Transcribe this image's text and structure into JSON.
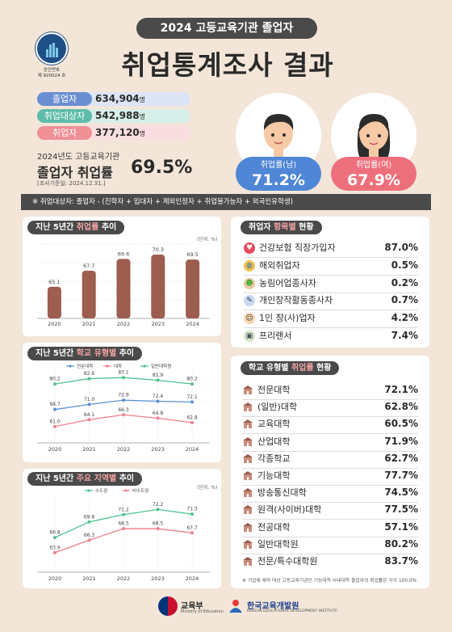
{
  "header": {
    "year_title": "2024 고등교육기관 졸업자",
    "main_title": "취업통계조사 결과",
    "approval": [
      "승인번호",
      "제 920024 호"
    ]
  },
  "stats": [
    {
      "label": "졸업자",
      "value": "634,904",
      "unit": "명",
      "color": "#6a8fd1",
      "bg": "#dbe5f5"
    },
    {
      "label": "취업대상자",
      "value": "542,988",
      "unit": "명",
      "color": "#5fbcaa",
      "bg": "#d7efe8"
    },
    {
      "label": "취업자",
      "value": "377,120",
      "unit": "명",
      "color": "#ef8f96",
      "bg": "#fadde0"
    }
  ],
  "overall": {
    "sub": "2024년도 고등교육기관",
    "label": "졸업자 취업률",
    "rate": "69.5%",
    "date": "[조사기준일: 2024.12.31.]"
  },
  "gender": {
    "male": {
      "label": "취업률(남)",
      "value": "71.2%",
      "color": "#4f86d6"
    },
    "female": {
      "label": "취업률(여)",
      "value": "67.9%",
      "color": "#ee6f7c"
    }
  },
  "note": "※ 취업대상자: 졸업자 - (진학자 + 입대자 + 제외인정자 + 취업불가능자 + 외국인유학생)",
  "trend_panel": {
    "title_pre": "지난 5년간 ",
    "title_hl": "취업률",
    "title_post": " 추이",
    "unit": "(단위: %)"
  },
  "type_panel": {
    "title_pre": "지난 5년간 ",
    "title_hl": "학교 유형별",
    "title_post": " 추이"
  },
  "region_panel": {
    "title_pre": "지난 5년간 ",
    "title_hl": "주요 지역별",
    "title_post": " 추이",
    "unit": "(단위: %)"
  },
  "chart_data": [
    {
      "type": "bar",
      "categories": [
        "2020",
        "2021",
        "2022",
        "2023",
        "2024"
      ],
      "values": [
        65.1,
        67.7,
        69.6,
        70.3,
        69.5
      ],
      "title": "지난 5년간 취업률 추이",
      "ylabel": "(단위: %)",
      "ylim": [
        60,
        72
      ]
    },
    {
      "type": "line",
      "categories": [
        "2020",
        "2021",
        "2022",
        "2023",
        "2024"
      ],
      "series": [
        {
          "name": "전문대학",
          "values": [
            68.7,
            71.0,
            72.9,
            72.4,
            72.1
          ],
          "color": "#5b8fd6"
        },
        {
          "name": "대학",
          "values": [
            61.0,
            64.1,
            66.3,
            64.8,
            62.8
          ],
          "color": "#ee7f8c"
        },
        {
          "name": "일반대학원",
          "values": [
            80.2,
            82.6,
            83.1,
            81.9,
            80.2
          ],
          "color": "#4fc28e"
        }
      ],
      "title": "지난 5년간 학교 유형별 추이"
    },
    {
      "type": "line",
      "categories": [
        "2020",
        "2021",
        "2022",
        "2023",
        "2024"
      ],
      "series": [
        {
          "name": "수도권",
          "values": [
            66.8,
            69.8,
            71.2,
            72.2,
            71.3
          ],
          "color": "#4fc28e"
        },
        {
          "name": "비수도권",
          "values": [
            63.9,
            66.3,
            68.5,
            68.5,
            67.7
          ],
          "color": "#ee7f8c"
        }
      ],
      "title": "지난 5년간 주요 지역별 추이",
      "ylabel": "(단위: %)"
    }
  ],
  "items_panel": {
    "title_pre": "취업자 ",
    "title_hl": "항목별",
    "title_post": " 현황",
    "items": [
      {
        "icon": "heart-icon",
        "label": "건강보험 직장가입자",
        "value": "87.0%"
      },
      {
        "icon": "globe-icon",
        "label": "해외취업자",
        "value": "0.5%"
      },
      {
        "icon": "farmer-icon",
        "label": "농림어업종사자",
        "value": "0.2%"
      },
      {
        "icon": "artist-icon",
        "label": "개인창작활동종사자",
        "value": "0.7%"
      },
      {
        "icon": "founder-icon",
        "label": "1인 창(사)업자",
        "value": "4.2%"
      },
      {
        "icon": "freelancer-icon",
        "label": "프리랜서",
        "value": "7.4%"
      }
    ]
  },
  "school_panel": {
    "title_pre": "학교 유형별 ",
    "title_hl": "취업률",
    "title_post": " 현황",
    "items": [
      {
        "label": "전문대학",
        "value": "72.1%"
      },
      {
        "label": "(일반)대학",
        "value": "62.8%"
      },
      {
        "label": "교육대학",
        "value": "60.5%"
      },
      {
        "label": "산업대학",
        "value": "71.9%"
      },
      {
        "label": "각종학교",
        "value": "62.7%"
      },
      {
        "label": "기능대학",
        "value": "77.7%"
      },
      {
        "label": "방송통신대학",
        "value": "74.5%"
      },
      {
        "label": "원격(사이버)대학",
        "value": "77.5%"
      },
      {
        "label": "전공대학",
        "value": "57.1%"
      },
      {
        "label": "일반대학원",
        "value": "80.2%"
      },
      {
        "label": "전문/특수대학원",
        "value": "83.7%"
      }
    ],
    "footnote": "※ 기업체 제작 대상 고등교육기관인 기능대학 사내대학 졸업자의 취업률은 각각 100.0%"
  },
  "footer": {
    "moe_name": "교육부",
    "moe_en": "Ministry of Education",
    "kedi_name": "한국교육개발원",
    "kedi_en": "KOREAN EDUCATIONAL DEVELOPMENT INSTITUTE"
  }
}
